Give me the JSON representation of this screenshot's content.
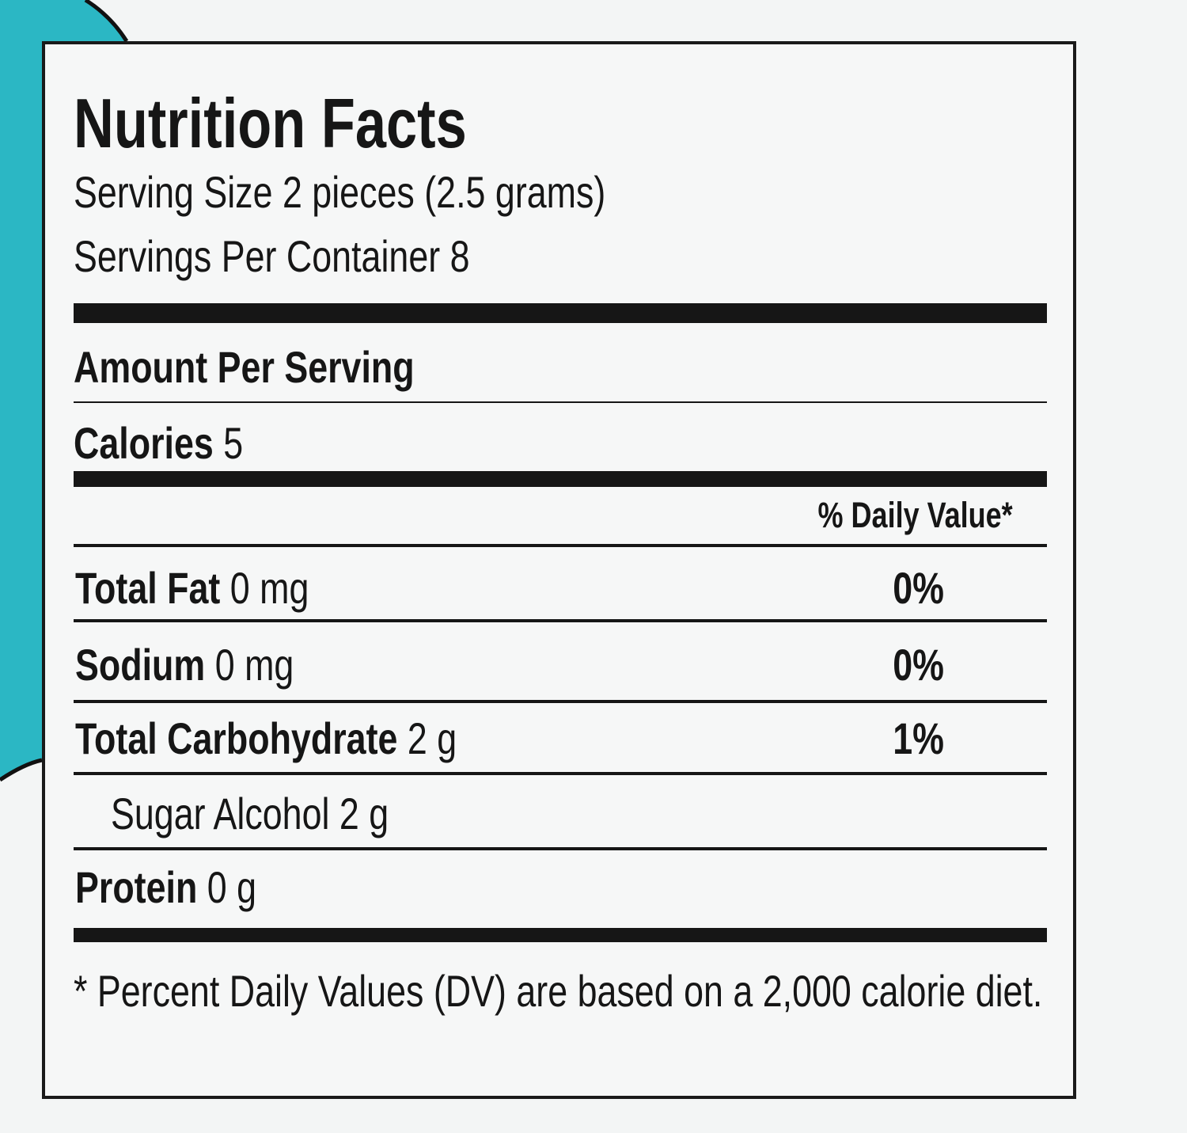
{
  "header": {
    "title": "Nutrition Facts",
    "serving_size": "Serving Size 2 pieces (2.5 grams)",
    "servings_per_container": "Servings Per Container 8"
  },
  "amount_per_serving": "Amount Per Serving",
  "calories": {
    "label": "Calories",
    "value": "5"
  },
  "daily_value_header": "% Daily Value*",
  "nutrients": [
    {
      "label": "Total Fat",
      "amount": "0 mg",
      "dv": "0%"
    },
    {
      "label": "Sodium",
      "amount": "0 mg",
      "dv": "0%"
    },
    {
      "label": "Total Carbohydrate",
      "amount": "2 g",
      "dv": "1%"
    },
    {
      "label": "Sugar Alcohol",
      "amount": "2 g"
    },
    {
      "label": "Protein",
      "amount": "0 g"
    }
  ],
  "footnote": "* Percent Daily Values (DV) are based on a 2,000 calorie diet."
}
